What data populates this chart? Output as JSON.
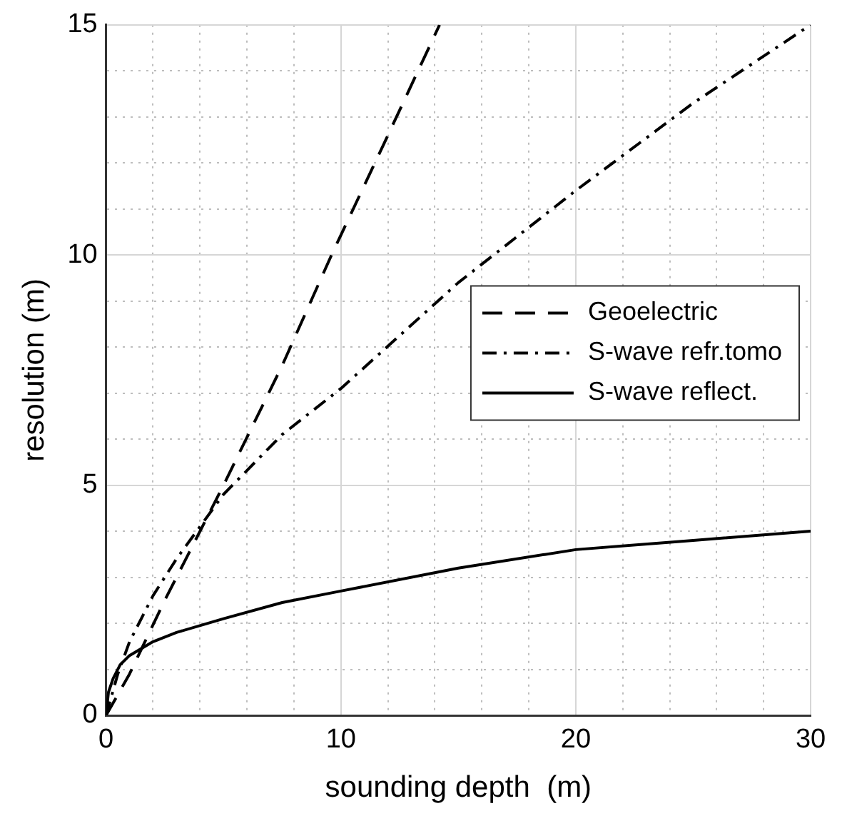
{
  "chart_data": {
    "type": "line",
    "xlabel": "sounding depth  (m)",
    "ylabel": "resolution (m)",
    "xlim": [
      0,
      30
    ],
    "ylim": [
      0,
      15
    ],
    "xticks": [
      0,
      {
        "value": 2,
        "label": null
      },
      {
        "value": 4,
        "label": null
      },
      {
        "value": 6,
        "label": null
      },
      {
        "value": 8,
        "label": null
      },
      10,
      {
        "value": 12,
        "label": null
      },
      {
        "value": 14,
        "label": null
      },
      {
        "value": 16,
        "label": null
      },
      {
        "value": 18,
        "label": null
      },
      20,
      {
        "value": 22,
        "label": null
      },
      {
        "value": 24,
        "label": null
      },
      {
        "value": 26,
        "label": null
      },
      {
        "value": 28,
        "label": null
      },
      30
    ],
    "yticks": [
      0,
      {
        "value": 1,
        "label": null
      },
      {
        "value": 2,
        "label": null
      },
      {
        "value": 3,
        "label": null
      },
      {
        "value": 4,
        "label": null
      },
      5,
      {
        "value": 6,
        "label": null
      },
      {
        "value": 7,
        "label": null
      },
      {
        "value": 8,
        "label": null
      },
      {
        "value": 9,
        "label": null
      },
      10,
      {
        "value": 11,
        "label": null
      },
      {
        "value": 12,
        "label": null
      },
      {
        "value": 13,
        "label": null
      },
      {
        "value": 14,
        "label": null
      },
      15
    ],
    "grid": true,
    "legend": "right",
    "marker": "none",
    "series": [
      {
        "name": "Geoelectric",
        "color": "#000000",
        "line_style": "dashed",
        "x": [
          0,
          1,
          2.5,
          5,
          7.5,
          9.6,
          12,
          14.2
        ],
        "values": [
          0,
          0.9,
          2.5,
          5,
          7.6,
          10,
          12.6,
          15
        ]
      },
      {
        "name": "S-wave refr.tomo",
        "color": "#000000",
        "line_style": "dashdot",
        "x": [
          0,
          0.5,
          1,
          2,
          3,
          5,
          7.5,
          10,
          15,
          20,
          25,
          30
        ],
        "values": [
          0,
          0.9,
          1.6,
          2.6,
          3.4,
          4.8,
          6.1,
          7.1,
          9.4,
          11.4,
          13.3,
          15
        ]
      },
      {
        "name": "S-wave reflect.",
        "color": "#000000",
        "line_style": "solid",
        "x": [
          0,
          0.1,
          0.3,
          0.6,
          1,
          2,
          3,
          5,
          7.5,
          10,
          15,
          20,
          25,
          30
        ],
        "values": [
          0,
          0.5,
          0.8,
          1.1,
          1.3,
          1.6,
          1.8,
          2.1,
          2.45,
          2.7,
          3.2,
          3.6,
          3.8,
          4.0
        ]
      }
    ]
  }
}
